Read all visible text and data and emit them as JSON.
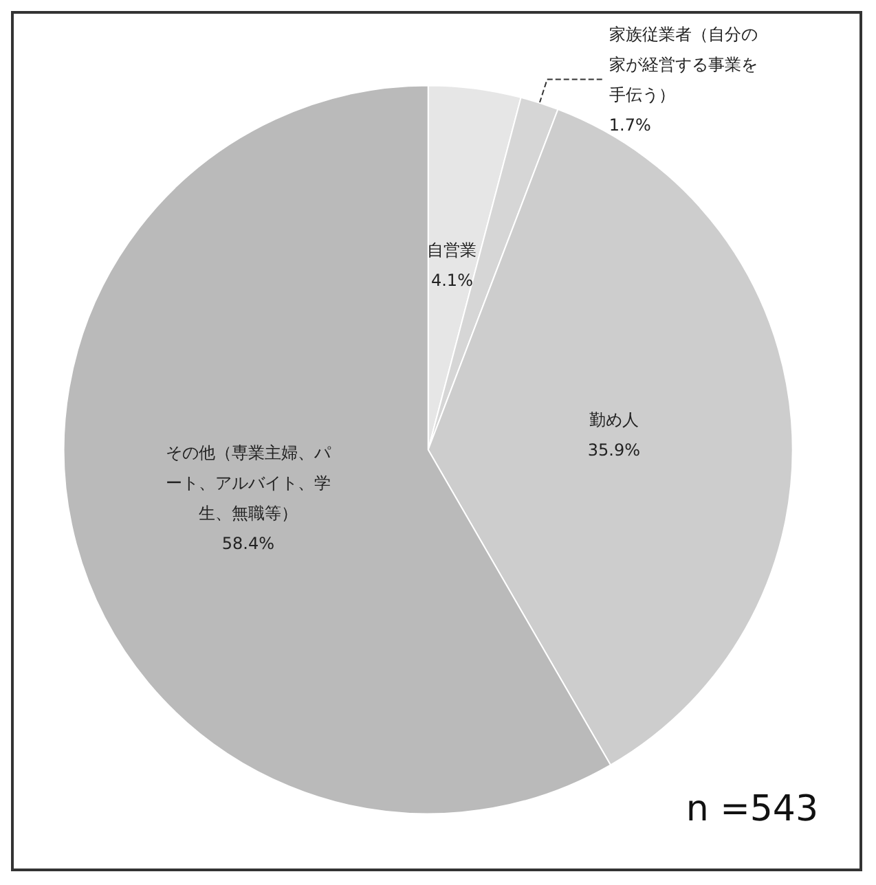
{
  "chart_data": {
    "type": "pie",
    "categories": [
      "自営業",
      "家族従業者（自分の家が経営する事業を手伝う）",
      "勤め人",
      "その他（専業主婦、パート、アルバイト、学生、無職等）"
    ],
    "values": [
      4.1,
      1.7,
      35.9,
      58.4
    ],
    "colors": [
      "#e6e6e6",
      "#d6d6d6",
      "#cdcdcd",
      "#bababa"
    ],
    "value_labels": [
      "4.1%",
      "1.7%",
      "35.9%",
      "58.4%"
    ],
    "legend": false,
    "annotations": [
      "n =543"
    ]
  }
}
